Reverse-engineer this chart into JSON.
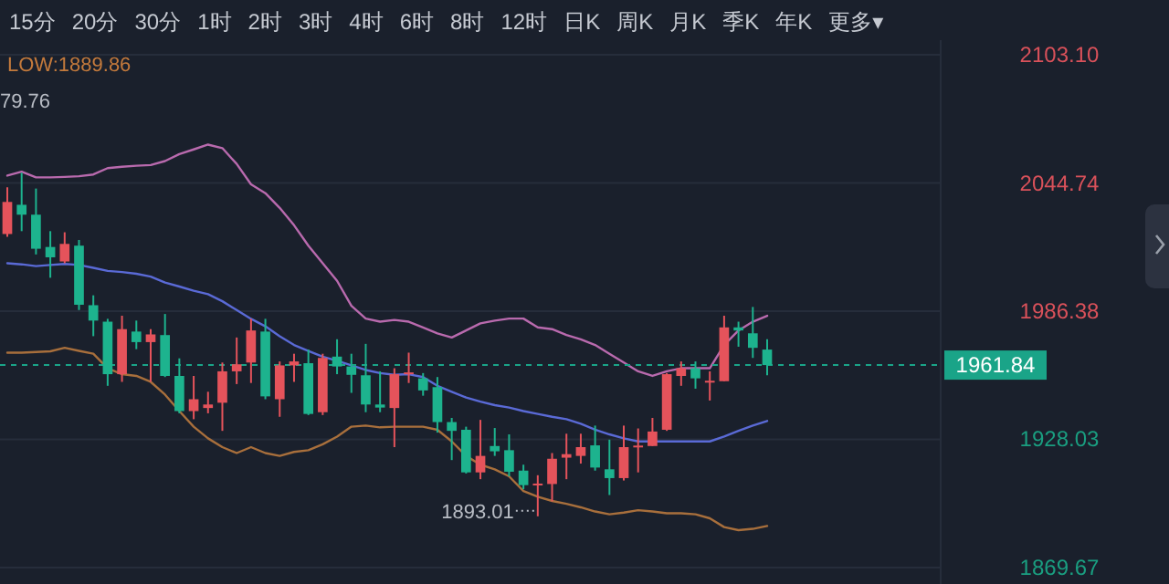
{
  "chart_data": {
    "type": "candlestick",
    "categories": [
      null,
      null,
      null,
      null,
      null,
      null,
      null,
      null,
      null,
      null,
      null,
      null,
      null,
      null,
      null,
      null,
      null,
      null,
      null,
      null,
      null,
      null,
      null,
      null,
      null,
      null,
      null,
      null,
      null,
      null,
      null,
      null,
      null,
      null,
      null,
      null,
      null,
      null,
      null,
      null,
      null,
      null,
      null,
      null,
      null,
      null,
      null,
      null,
      null,
      null,
      null,
      null,
      null,
      null
    ],
    "ohlc": [
      [
        2021.5,
        2042.8,
        2020.2,
        2036.1
      ],
      [
        2034.8,
        2049.4,
        2022.8,
        2030.3
      ],
      [
        2030.3,
        2042.2,
        2012.2,
        2014.8
      ],
      [
        2015.6,
        2022.8,
        2001.6,
        2010.9
      ],
      [
        2009.0,
        2022.3,
        2008.2,
        2017.0
      ],
      [
        2016.2,
        2018.8,
        1986.9,
        1989.3
      ],
      [
        1989.1,
        1993.6,
        1975.0,
        1982.1
      ],
      [
        1981.6,
        1982.9,
        1952.4,
        1957.7
      ],
      [
        1957.7,
        1984.3,
        1954.2,
        1978.2
      ],
      [
        1977.1,
        1982.1,
        1969.1,
        1972.3
      ],
      [
        1972.3,
        1978.2,
        1954.2,
        1975.8
      ],
      [
        1975.5,
        1985.1,
        1956.4,
        1956.9
      ],
      [
        1956.9,
        1964.9,
        1939.9,
        1940.9
      ],
      [
        1940.9,
        1956.9,
        1937.2,
        1946.3
      ],
      [
        1942.3,
        1949.7,
        1939.9,
        1943.9
      ],
      [
        1944.7,
        1963.0,
        1931.9,
        1959.0
      ],
      [
        1959.0,
        1974.4,
        1953.2,
        1962.2
      ],
      [
        1963.0,
        1982.9,
        1953.7,
        1977.6
      ],
      [
        1977.1,
        1982.9,
        1946.3,
        1947.6
      ],
      [
        1946.3,
        1963.5,
        1938.3,
        1961.7
      ],
      [
        1961.7,
        1967.0,
        1954.2,
        1963.5
      ],
      [
        1962.7,
        1968.9,
        1939.1,
        1939.6
      ],
      [
        1940.4,
        1967.0,
        1939.1,
        1965.1
      ],
      [
        1965.7,
        1973.6,
        1957.7,
        1961.2
      ],
      [
        1961.2,
        1967.0,
        1949.2,
        1957.4
      ],
      [
        1957.2,
        1971.5,
        1940.4,
        1943.9
      ],
      [
        1943.9,
        1959.0,
        1940.4,
        1942.5
      ],
      [
        1942.3,
        1960.4,
        1924.5,
        1957.7
      ],
      [
        1957.7,
        1967.5,
        1953.7,
        1958.5
      ],
      [
        1955.8,
        1958.2,
        1947.9,
        1950.3
      ],
      [
        1951.8,
        1956.4,
        1931.1,
        1935.9
      ],
      [
        1935.9,
        1937.8,
        1918.6,
        1931.9
      ],
      [
        1932.4,
        1933.8,
        1912.5,
        1913.0
      ],
      [
        1913.0,
        1936.9,
        1909.9,
        1920.5
      ],
      [
        1925.0,
        1933.2,
        1920.5,
        1922.6
      ],
      [
        1923.1,
        1930.3,
        1911.2,
        1913.3
      ],
      [
        1913.8,
        1916.5,
        1905.3,
        1907.2
      ],
      [
        1907.7,
        1911.7,
        1893.01,
        1907.9
      ],
      [
        1907.7,
        1921.8,
        1899.8,
        1919.2
      ],
      [
        1919.7,
        1930.6,
        1909.9,
        1921.3
      ],
      [
        1920.5,
        1930.6,
        1917.0,
        1924.5
      ],
      [
        1925.3,
        1934.3,
        1913.8,
        1915.2
      ],
      [
        1914.4,
        1927.9,
        1902.7,
        1910.4
      ],
      [
        1910.4,
        1934.3,
        1909.3,
        1924.5
      ],
      [
        1925.0,
        1933.0,
        1913.0,
        1925.2
      ],
      [
        1925.0,
        1937.8,
        1925.0,
        1931.6
      ],
      [
        1932.4,
        1958.2,
        1931.9,
        1957.7
      ],
      [
        1956.9,
        1963.5,
        1952.4,
        1960.4
      ],
      [
        1960.4,
        1963.5,
        1951.1,
        1955.8
      ],
      [
        1954.5,
        1959.0,
        1945.7,
        1954.7
      ],
      [
        1954.5,
        1984.3,
        1954.5,
        1979.0
      ],
      [
        1979.0,
        1981.6,
        1970.2,
        1977.6
      ],
      [
        1976.3,
        1988.3,
        1965.1,
        1969.7
      ],
      [
        1968.9,
        1973.6,
        1957.2,
        1961.84
      ]
    ],
    "colors": [
      "#e5535b",
      "#1db38e",
      "#1db38e",
      "#1db38e",
      "#e5535b",
      "#1db38e",
      "#1db38e",
      "#1db38e",
      "#e5535b",
      "#1db38e",
      "#e5535b",
      "#1db38e",
      "#1db38e",
      "#e5535b",
      "#e5535b",
      "#e5535b",
      "#e5535b",
      "#e5535b",
      "#1db38e",
      "#e5535b",
      "#e5535b",
      "#1db38e",
      "#e5535b",
      "#1db38e",
      "#1db38e",
      "#1db38e",
      "#1db38e",
      "#e5535b",
      "#e5535b",
      "#1db38e",
      "#1db38e",
      "#1db38e",
      "#1db38e",
      "#e5535b",
      "#1db38e",
      "#1db38e",
      "#1db38e",
      "#e5535b",
      "#e5535b",
      "#e5535b",
      "#e5535b",
      "#1db38e",
      "#1db38e",
      "#e5535b",
      "#e5535b",
      "#e5535b",
      "#e5535b",
      "#e5535b",
      "#1db38e",
      "#e5535b",
      "#e5535b",
      "#1db38e",
      "#1db38e",
      "#1db38e"
    ],
    "series": [
      {
        "type": "line",
        "color": "#b96aae",
        "values": [
          2048.1,
          2049.9,
          2047.3,
          2047.3,
          2047.5,
          2047.8,
          2048.6,
          2051.5,
          2052.1,
          2052.6,
          2052.9,
          2054.7,
          2057.9,
          2060.0,
          2062.2,
          2060.6,
          2053.4,
          2044.1,
          2040.1,
          2033.4,
          2025.5,
          2016.2,
          2008.2,
          2000.2,
          1988.8,
          1983.0,
          1981.6,
          1982.4,
          1981.6,
          1979.0,
          1976.3,
          1974.4,
          1977.6,
          1980.8,
          1982.1,
          1983.0,
          1983.0,
          1979.0,
          1978.2,
          1975.5,
          1973.6,
          1971.0,
          1967.0,
          1963.0,
          1959.0,
          1956.9,
          1959.0,
          1960.4,
          1960.4,
          1960.4,
          1971.0,
          1977.6,
          1981.6,
          1984.3
        ]
      },
      {
        "type": "line",
        "color": "#5a6ad6",
        "values": [
          2008.2,
          2007.7,
          2006.9,
          2007.4,
          2007.9,
          2007.4,
          2006.1,
          2004.7,
          2004.2,
          2003.4,
          2002.1,
          1999.4,
          1997.6,
          1995.7,
          1994.1,
          1990.9,
          1986.9,
          1982.9,
          1979.5,
          1975.0,
          1971.0,
          1968.3,
          1965.7,
          1963.8,
          1961.7,
          1959.6,
          1958.2,
          1957.4,
          1957.7,
          1956.4,
          1952.4,
          1949.7,
          1947.1,
          1945.2,
          1943.6,
          1942.5,
          1940.9,
          1939.6,
          1938.3,
          1937.2,
          1935.1,
          1932.4,
          1930.3,
          1928.5,
          1927.1,
          1927.1,
          1927.1,
          1927.1,
          1927.1,
          1927.1,
          1929.3,
          1931.9,
          1934.3,
          1936.4
        ]
      },
      {
        "type": "line",
        "color": "#a86f3c",
        "values": [
          1967.5,
          1967.5,
          1967.8,
          1968.1,
          1969.7,
          1968.3,
          1967.0,
          1960.4,
          1957.7,
          1956.9,
          1954.2,
          1948.4,
          1940.9,
          1933.8,
          1928.5,
          1924.5,
          1921.8,
          1924.5,
          1921.8,
          1920.5,
          1922.3,
          1923.1,
          1925.8,
          1929.3,
          1933.8,
          1934.3,
          1933.5,
          1933.8,
          1933.8,
          1933.8,
          1932.4,
          1927.1,
          1920.5,
          1916.5,
          1914.4,
          1911.2,
          1904.5,
          1901.9,
          1900.0,
          1898.7,
          1897.1,
          1895.2,
          1893.9,
          1894.7,
          1895.8,
          1895.2,
          1894.4,
          1894.4,
          1893.9,
          1892.1,
          1888.1,
          1886.7,
          1887.3,
          1888.6
        ]
      }
    ],
    "ylim": [
      1869.67,
      2103.1
    ],
    "yticks": [
      1869.67,
      1928.03,
      1986.38,
      2044.74,
      {
        "value": 2103.1,
        "label": "2103.10"
      }
    ],
    "grid": "y",
    "tick_labels": "y",
    "ref_lines": [
      {
        "axis": "y",
        "value": 1961.84,
        "label": "1961.84",
        "color": "#1aa488",
        "line_style": "dashed"
      }
    ],
    "annotations": [
      "15分",
      "20分",
      "30分",
      "1时",
      "2时",
      "3时",
      "4时",
      "6时",
      "8时",
      "12时",
      "日K",
      "周K",
      "月K",
      "季K",
      "年K",
      "更多▾",
      "LOW:1889.86",
      "79.76",
      "1893.01"
    ]
  }
}
